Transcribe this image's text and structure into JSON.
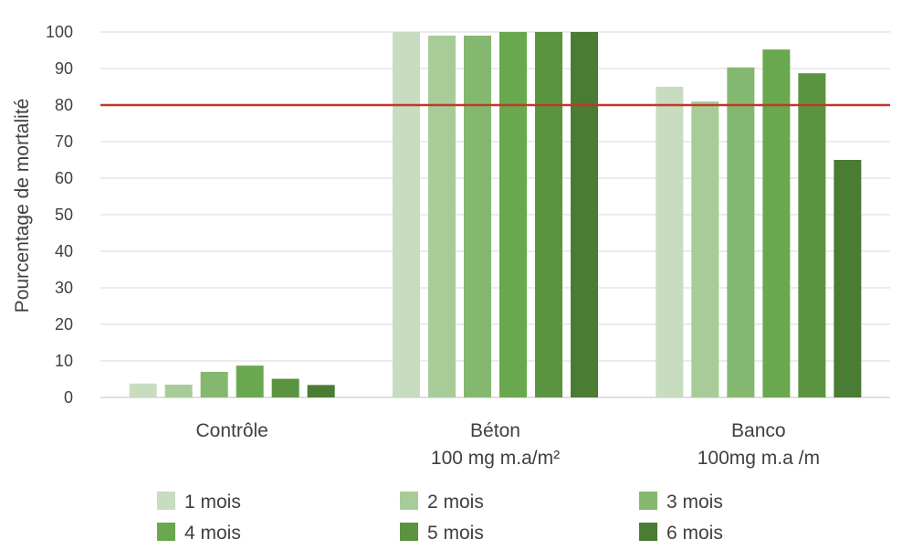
{
  "chart_data": {
    "type": "bar",
    "title": "",
    "xlabel": "",
    "ylabel": "Pourcentage de mortalité",
    "ylim": [
      0,
      100
    ],
    "yticks": [
      0,
      10,
      20,
      30,
      40,
      50,
      60,
      70,
      80,
      90,
      100
    ],
    "grid": true,
    "legend_position": "bottom",
    "categories": [
      {
        "lines": [
          "Contrôle"
        ]
      },
      {
        "lines": [
          "Béton",
          "100 mg m.a/m²"
        ]
      },
      {
        "lines": [
          "Banco",
          "100mg m.a /m"
        ]
      }
    ],
    "series": [
      {
        "name": "1 mois",
        "color": "#c8dcc0",
        "values": [
          3.8,
          100,
          85
        ]
      },
      {
        "name": "2 mois",
        "color": "#a8cc98",
        "values": [
          3.5,
          99,
          81
        ]
      },
      {
        "name": "3 mois",
        "color": "#84b870",
        "values": [
          7,
          99,
          90.3
        ]
      },
      {
        "name": "4 mois",
        "color": "#6aa84f",
        "values": [
          8.7,
          100,
          95.2
        ]
      },
      {
        "name": "5 mois",
        "color": "#5a9440",
        "values": [
          5.1,
          100,
          88.7
        ]
      },
      {
        "name": "6 mois",
        "color": "#4a7c33",
        "values": [
          3.4,
          100,
          65
        ]
      }
    ],
    "reference_line": {
      "y": 80,
      "color": "#c0392b"
    }
  }
}
